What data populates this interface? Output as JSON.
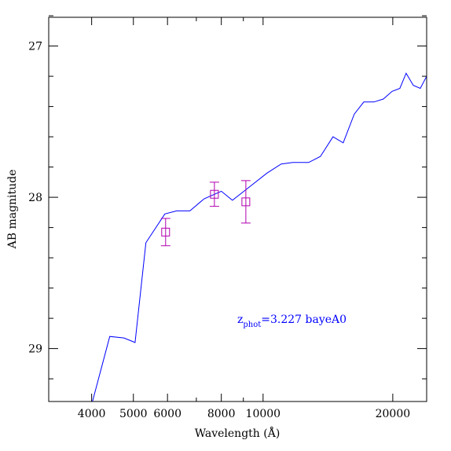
{
  "chart_data": {
    "type": "line",
    "xlabel": "Wavelength (Å)",
    "ylabel": "AB magnitude",
    "xscale": "log",
    "xlim": [
      3180,
      23970
    ],
    "ylim": [
      29.35,
      26.81
    ],
    "xticks": [
      4000,
      5000,
      6000,
      8000,
      10000,
      20000
    ],
    "x_minor_ticks": [
      7000,
      9000
    ],
    "yticks": [
      27,
      28,
      29
    ],
    "y_minor_ticks": [
      26.8,
      27.2,
      27.4,
      27.6,
      27.8,
      28.2,
      28.4,
      28.6,
      28.8,
      29.2
    ],
    "model": {
      "color": "#0000ff",
      "x": [
        4018,
        4406,
        4753,
        5045,
        5346,
        5916,
        6299,
        6764,
        7298,
        8000,
        8487,
        9311,
        10212,
        11016,
        11731,
        12758,
        13588,
        14529,
        15346,
        16279,
        17130,
        18085,
        19021,
        19927,
        20770,
        21480,
        22320,
        23170,
        23970
      ],
      "values": [
        29.35,
        28.92,
        28.93,
        28.96,
        28.3,
        28.11,
        28.09,
        28.09,
        28.01,
        27.96,
        28.02,
        27.93,
        27.84,
        27.78,
        27.77,
        27.77,
        27.73,
        27.6,
        27.64,
        27.45,
        27.37,
        27.37,
        27.35,
        27.3,
        27.28,
        27.18,
        27.26,
        27.28,
        27.2
      ]
    },
    "photometry": {
      "color": "#b000b0",
      "x": [
        5940,
        7710,
        9120
      ],
      "values": [
        28.23,
        27.98,
        28.03
      ],
      "errors": [
        0.09,
        0.08,
        0.14
      ]
    },
    "annotation": {
      "symbol": "z",
      "subscript": "phot",
      "text": "=3.227 bayeA0",
      "color": "#0000ff"
    }
  }
}
